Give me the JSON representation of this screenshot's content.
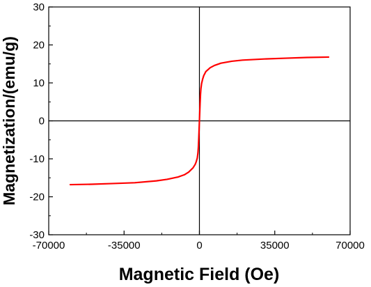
{
  "chart_data": {
    "type": "line",
    "title": "",
    "xlabel": "Magnetic Field (Oe)",
    "ylabel": "Magnetization/(emu/g)",
    "xlim": [
      -70000,
      70000
    ],
    "ylim": [
      -30,
      30
    ],
    "xticks": [
      -70000,
      -35000,
      0,
      35000,
      70000
    ],
    "yticks": [
      -30,
      -20,
      -10,
      0,
      10,
      20,
      30
    ],
    "xtick_labels": [
      "-70000",
      "-35000",
      "0",
      "35000",
      "70000"
    ],
    "ytick_labels": [
      "-30",
      "-20",
      "-10",
      "0",
      "10",
      "20",
      "30"
    ],
    "grid": false,
    "series": [
      {
        "color": "#ff0000",
        "x": [
          -60000,
          -50000,
          -40000,
          -30000,
          -20000,
          -15000,
          -10000,
          -7000,
          -5000,
          -3000,
          -2000,
          -1500,
          -1000,
          -700,
          -500,
          -300,
          -200,
          -100,
          0,
          100,
          200,
          300,
          500,
          700,
          1000,
          1500,
          2000,
          3000,
          5000,
          7000,
          10000,
          15000,
          20000,
          30000,
          40000,
          50000,
          60000
        ],
        "y": [
          -16.8,
          -16.7,
          -16.5,
          -16.3,
          -15.8,
          -15.4,
          -14.8,
          -14.2,
          -13.5,
          -12.4,
          -11.5,
          -10.8,
          -9.8,
          -8.5,
          -7.0,
          -4.5,
          -3.0,
          -1.5,
          0,
          1.5,
          3.0,
          4.5,
          7.0,
          8.5,
          9.8,
          11.0,
          11.9,
          13.0,
          14.0,
          14.6,
          15.2,
          15.7,
          16.0,
          16.3,
          16.5,
          16.7,
          16.8
        ]
      }
    ]
  }
}
